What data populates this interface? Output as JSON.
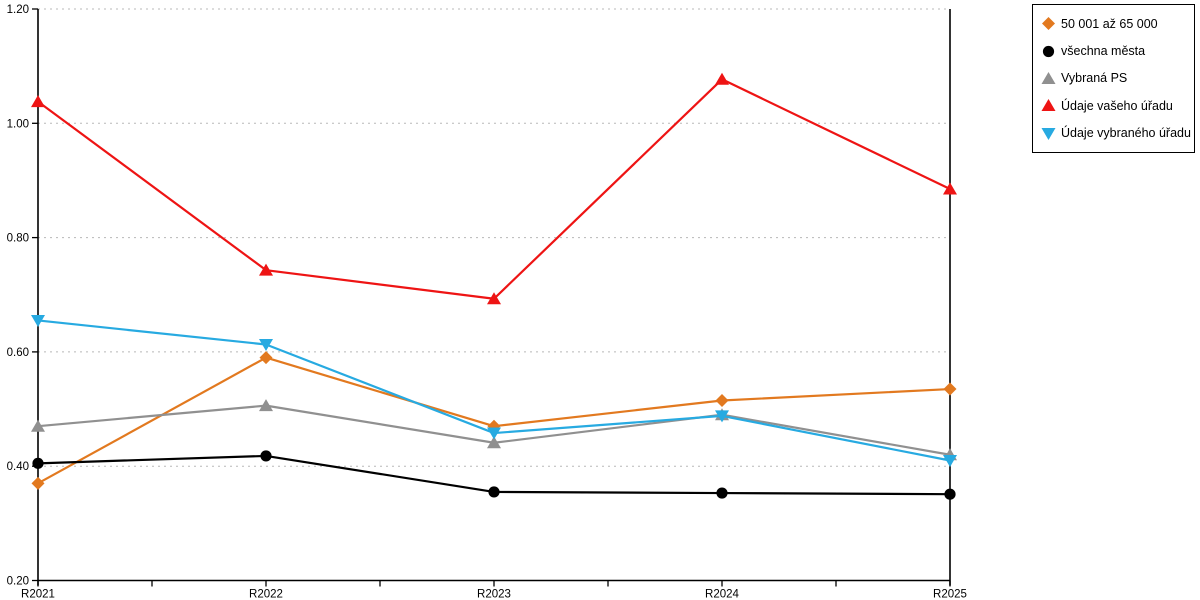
{
  "chart": {
    "background": "#ffffff",
    "axis_color": "#000000",
    "gridline_color": "#b8b8b8"
  },
  "chart_data": {
    "type": "line",
    "title": "",
    "xlabel": "",
    "ylabel": "",
    "categories": [
      "R2021",
      "R2022",
      "R2023",
      "R2024",
      "R2025"
    ],
    "ylim": [
      0.2,
      1.2
    ],
    "yticks": [
      0.2,
      0.4,
      0.6,
      0.8,
      1.0,
      1.2
    ],
    "ytick_labels": [
      "0.20",
      "0.40",
      "0.60",
      "0.80",
      "1.00",
      "1.20"
    ],
    "grid": true,
    "legend_position": "top-right",
    "series": [
      {
        "name": "50 001 až 65 000",
        "color": "#E2791F",
        "marker": "diamond",
        "values": [
          0.37,
          0.59,
          0.47,
          0.515,
          0.535
        ]
      },
      {
        "name": "všechna města",
        "color": "#000000",
        "marker": "circle",
        "values": [
          0.405,
          0.418,
          0.355,
          0.353,
          0.351
        ]
      },
      {
        "name": "Vybraná PS",
        "color": "#909090",
        "marker": "triangle-up",
        "values": [
          0.47,
          0.506,
          0.441,
          0.49,
          0.42
        ]
      },
      {
        "name": "Údaje vašeho úřadu",
        "color": "#EE1414",
        "marker": "triangle-up",
        "values": [
          1.038,
          0.743,
          0.693,
          1.077,
          0.885
        ]
      },
      {
        "name": "Údaje vybraného úřadu",
        "color": "#27AAE1",
        "marker": "triangle-down",
        "values": [
          0.655,
          0.613,
          0.458,
          0.488,
          0.41
        ]
      }
    ]
  }
}
